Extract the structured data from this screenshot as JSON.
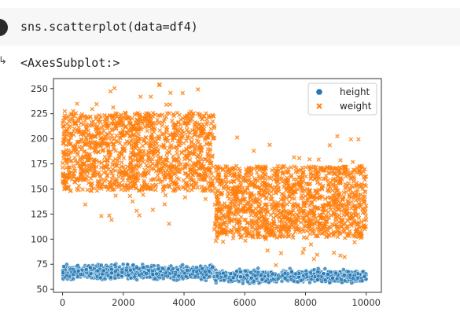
{
  "notebook": {
    "code": "sns.scatterplot(data=df4)",
    "output_text": "<AxesSubplot:>",
    "output_arrow": "↳",
    "run_icon": "run-cell-icon"
  },
  "chart_data": {
    "type": "scatter",
    "xlim": [
      -300,
      10500
    ],
    "ylim": [
      47,
      260
    ],
    "x_ticks": [
      0,
      2000,
      4000,
      6000,
      8000,
      10000
    ],
    "y_ticks": [
      50,
      75,
      100,
      125,
      150,
      175,
      200,
      225,
      250
    ],
    "grid": false,
    "legend": {
      "position": "top-right",
      "entries": [
        "height",
        "weight"
      ]
    },
    "series": [
      {
        "name": "height",
        "marker": "circle",
        "color": "#1f77b4",
        "segments": [
          {
            "x_start": 0,
            "x_end": 5000,
            "y_center": 67,
            "y_spread": 7
          },
          {
            "x_start": 5000,
            "x_end": 10000,
            "y_center": 63,
            "y_spread": 6
          }
        ]
      },
      {
        "name": "weight",
        "marker": "x",
        "color": "#ff7f0e",
        "segments": [
          {
            "x_start": 0,
            "x_end": 5000,
            "y_center": 187,
            "y_spread": 26,
            "y_min": 113,
            "y_max": 255
          },
          {
            "x_start": 5000,
            "x_end": 10000,
            "y_center": 137,
            "y_spread": 24,
            "y_min": 70,
            "y_max": 203
          }
        ]
      }
    ]
  }
}
